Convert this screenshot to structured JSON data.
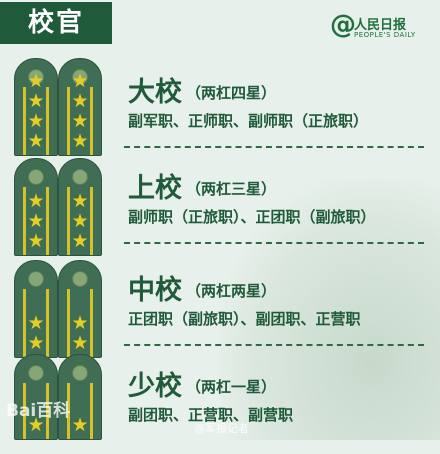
{
  "title": "校官",
  "logo": {
    "at": "@",
    "brand": "人民日报",
    "sub": "PEOPLE'S DAILY"
  },
  "ranks": [
    {
      "name": "大校",
      "stripes": "（两杠四星）",
      "duties": "副军职、正师职、副师职（正旅职）",
      "stars": 4
    },
    {
      "name": "上校",
      "stripes": "（两杠三星）",
      "duties": "副师职（正旅职）、正团职（副旅职）",
      "stars": 3
    },
    {
      "name": "中校",
      "stripes": "（两杠两星）",
      "duties": "正团职（副旅职）、副团职、正营职",
      "stars": 2
    },
    {
      "name": "少校",
      "stripes": "（两杠一星）",
      "duties": "副团职、正营职、副营职",
      "stars": 1
    }
  ],
  "watermarks": {
    "baidu": "Bai百科",
    "weibo": "@军报记者"
  },
  "colors": {
    "primary_green": "#1f5a3a",
    "board_green": "#3f6e55",
    "star_gold": "#e6cd24",
    "background": "#e7f0ea"
  }
}
